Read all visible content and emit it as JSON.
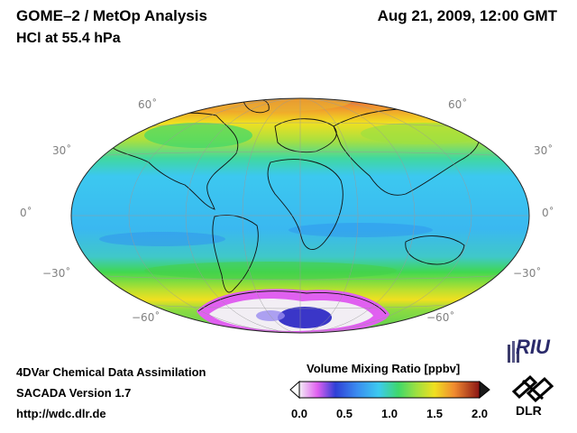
{
  "header": {
    "title": "GOME–2 / MetOp Analysis",
    "subtitle": "HCl at 55.4 hPa",
    "datetime": "Aug 21, 2009, 12:00 GMT"
  },
  "map": {
    "projection": "Hammer-Aitoff",
    "latitude_labels": [
      "60˚",
      "30˚",
      "0˚",
      "−30˚",
      "−60˚"
    ],
    "colors": {
      "low": "#1f3fd6",
      "mid": "#3fc8f0",
      "green": "#3fd24a",
      "yellow": "#f0e020",
      "high": "#c8201e",
      "antarctic_white": "#f2eef4",
      "antarctic_pink": "#e060f0",
      "antarctic_core": "#3a36c8"
    }
  },
  "footer": {
    "line1": "4DVar Chemical Data Assimilation",
    "line2": "SACADA Version 1.7",
    "line3": "http://wdc.dlr.de"
  },
  "colorbar": {
    "title": "Volume Mixing Ratio [ppbv]",
    "ticks": [
      "0.0",
      "0.5",
      "1.0",
      "1.5",
      "2.0"
    ]
  },
  "logos": {
    "riu": "RIU",
    "dlr": "DLR"
  }
}
